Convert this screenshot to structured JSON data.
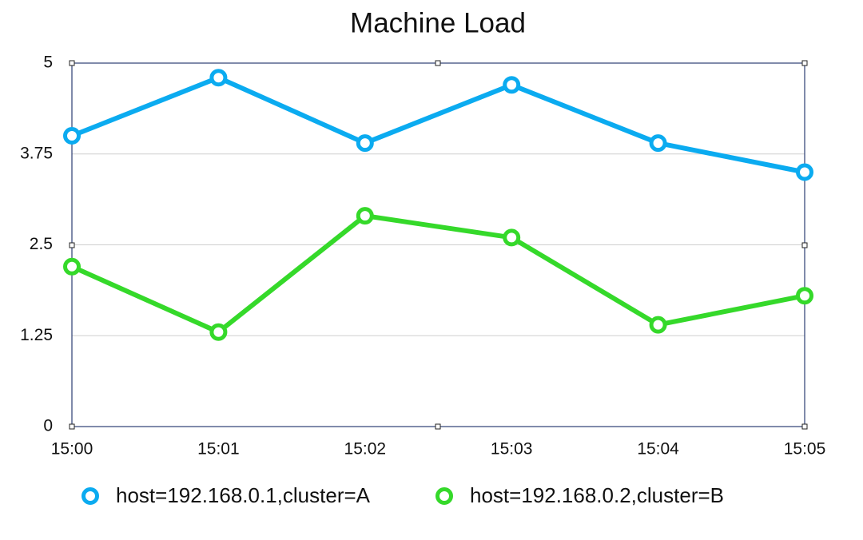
{
  "chart_data": {
    "type": "line",
    "title": "Machine Load",
    "categories": [
      "15:00",
      "15:01",
      "15:02",
      "15:03",
      "15:04",
      "15:05"
    ],
    "series": [
      {
        "name": "host=192.168.0.1,cluster=A",
        "color": "#0babf0",
        "values": [
          4.0,
          4.8,
          3.9,
          4.7,
          3.9,
          3.5
        ]
      },
      {
        "name": "host=192.168.0.2,cluster=B",
        "color": "#35d92a",
        "values": [
          2.2,
          1.3,
          2.9,
          2.6,
          1.4,
          1.8
        ]
      }
    ],
    "ylim": [
      0,
      5
    ],
    "yticks": [
      0,
      1.25,
      2.5,
      3.75,
      5
    ],
    "grid": true,
    "legend": "bottom"
  }
}
